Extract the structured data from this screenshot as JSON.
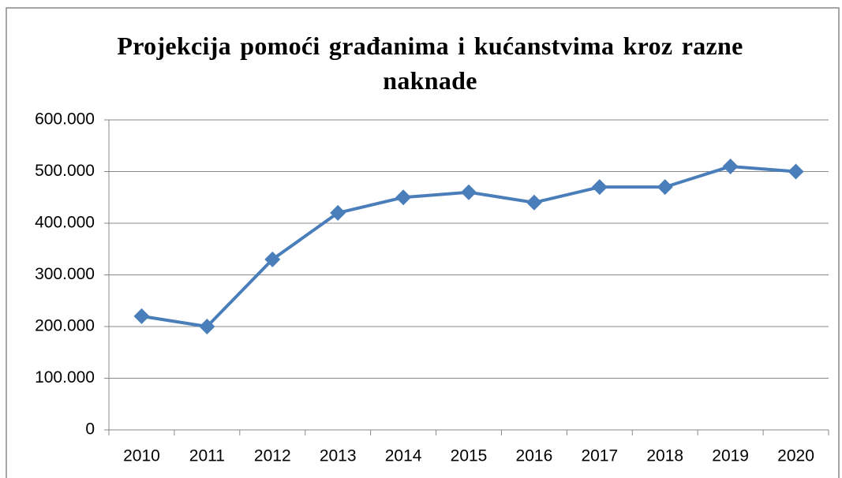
{
  "chart_data": {
    "type": "line",
    "title": "Projekcija pomoći građanima i kućanstvima kroz razne naknade",
    "categories": [
      "2010",
      "2011",
      "2012",
      "2013",
      "2014",
      "2015",
      "2016",
      "2017",
      "2018",
      "2019",
      "2020"
    ],
    "series": [
      {
        "color": "#4a7ebb",
        "values": [
          220000,
          200000,
          330000,
          420000,
          450000,
          460000,
          440000,
          470000,
          470000,
          510000,
          500000
        ]
      }
    ],
    "ylim": [
      0,
      600000
    ],
    "yticks": [
      0,
      {
        "value": 100000,
        "label": "100.000"
      },
      {
        "value": 200000,
        "label": "200.000"
      },
      {
        "value": 300000,
        "label": "300.000"
      },
      {
        "value": 400000,
        "label": "400.000"
      },
      {
        "value": 500000,
        "label": "500.000"
      },
      {
        "value": 600000,
        "label": "600.000"
      }
    ],
    "grid": true
  }
}
